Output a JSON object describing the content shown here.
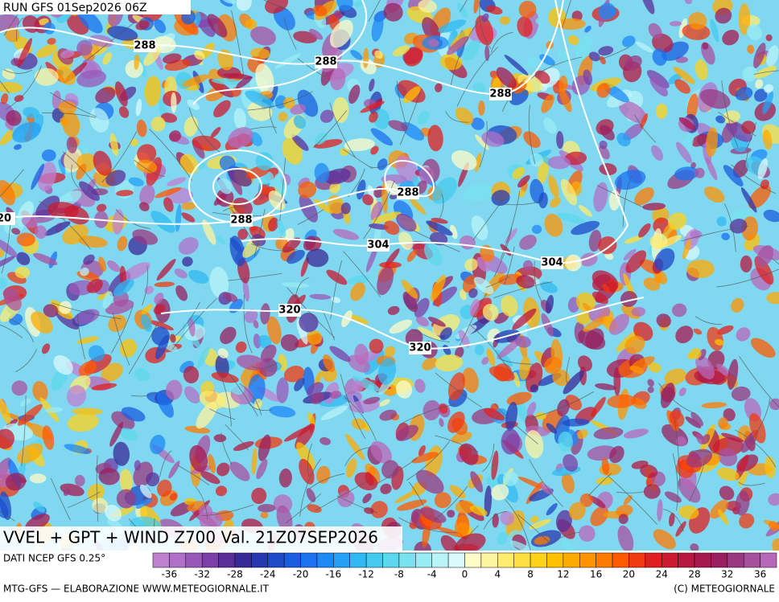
{
  "header": {
    "run": "RUN GFS 01Sep2026 06Z"
  },
  "map": {
    "contour_labels": [
      "288",
      "288",
      "288",
      "288",
      "288",
      "304",
      "304",
      "320",
      "320",
      "20"
    ]
  },
  "panel": {
    "title": "VVEL + GPT + WIND Z700 Val. 21Z07SEP2026"
  },
  "legend": {
    "source": "DATI NCEP GFS 0.25°",
    "ticks": [
      -36,
      -32,
      -28,
      -24,
      -20,
      -16,
      -12,
      -8,
      -4,
      0,
      4,
      8,
      12,
      16,
      20,
      24,
      28,
      32,
      36
    ]
  },
  "footer": {
    "credit": "MTG-GFS — ELABORAZIONE WWW.METEOGIORNALE.IT",
    "copyright": "(C) METEOGIORNALE"
  }
}
